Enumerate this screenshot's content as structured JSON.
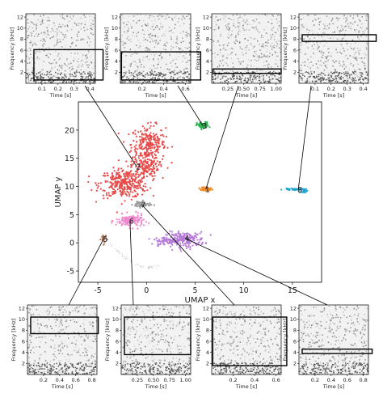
{
  "chart_data": {
    "type": "scatter",
    "xlabel": "UMAP x",
    "ylabel": "UMAP y",
    "xlim": [
      -7,
      18
    ],
    "ylim": [
      -7,
      25
    ],
    "xticks": [
      -5,
      0,
      5,
      10,
      15
    ],
    "yticks": [
      -5,
      0,
      5,
      10,
      15,
      20
    ],
    "grid": false,
    "clusters": [
      {
        "label": "1",
        "color": "#f28e2b",
        "center": [
          6.1,
          9.5
        ]
      },
      {
        "label": "2",
        "color": "#e84a4a",
        "center": [
          -1.0,
          13.5
        ]
      },
      {
        "label": "3",
        "color": "#27b24a",
        "center": [
          5.8,
          20.8
        ]
      },
      {
        "label": "4",
        "color": "#b57bd6",
        "center": [
          4.0,
          0.8
        ]
      },
      {
        "label": "5",
        "color": "#b07a60",
        "center": [
          -4.4,
          0.7
        ]
      },
      {
        "label": "6",
        "color": "#ee88cc",
        "center": [
          -1.7,
          3.9
        ]
      },
      {
        "label": "7",
        "color": "#9a9a9a",
        "center": [
          -0.5,
          6.8
        ]
      },
      {
        "label": "8",
        "color": "#1fa5d0",
        "center": [
          15.6,
          9.4
        ]
      }
    ],
    "spectrograms": [
      {
        "cluster": "2",
        "freq_ticks": [
          "2",
          "4",
          "6",
          "8",
          "10",
          "12"
        ],
        "time_ticks": [
          "0.1",
          "0.2",
          "0.3",
          "0.4"
        ],
        "ylabel": "Frequency [kHz]",
        "xlabel": "Time [s]",
        "box": [
          0.05,
          0.48,
          0.6,
          6.1
        ]
      },
      {
        "cluster": "3",
        "freq_ticks": [
          "2",
          "4",
          "6",
          "8",
          "10",
          "12"
        ],
        "time_ticks": [
          "0.2",
          "0.4",
          "0.6"
        ],
        "ylabel": "Frequency [kHz]",
        "xlabel": "Time [s]",
        "box": [
          0.01,
          0.74,
          0.6,
          5.7
        ]
      },
      {
        "cluster": "1",
        "freq_ticks": [
          "2",
          "4",
          "6",
          "8",
          "10",
          "12"
        ],
        "time_ticks": [
          "0.25",
          "0.50",
          "0.75",
          "1.00"
        ],
        "ylabel": "Frequency [kHz]",
        "xlabel": "Time [s]",
        "box": [
          0.02,
          1.08,
          1.8,
          2.6
        ]
      },
      {
        "cluster": "8",
        "freq_ticks": [
          "2",
          "4",
          "6",
          "8",
          "10",
          "12"
        ],
        "time_ticks": [
          "0.1",
          "0.2",
          "0.3",
          "0.4"
        ],
        "ylabel": "Frequency [kHz]",
        "xlabel": "Time [s]",
        "box": [
          0.02,
          0.48,
          7.6,
          8.8
        ]
      },
      {
        "cluster": "5",
        "freq_ticks": [
          "2",
          "4",
          "6",
          "8",
          "10",
          "12"
        ],
        "time_ticks": [
          "0.2",
          "0.4",
          "0.6",
          "0.8"
        ],
        "ylabel": "Frequency [kHz]",
        "xlabel": "Time [s]",
        "box": [
          0.04,
          0.88,
          7.4,
          10.4
        ]
      },
      {
        "cluster": "6",
        "freq_ticks": [
          "2",
          "4",
          "6",
          "8",
          "10",
          "12"
        ],
        "time_ticks": [
          "0.25",
          "0.50",
          "0.75",
          "1.00"
        ],
        "ylabel": "Frequency [kHz]",
        "xlabel": "Time [s]",
        "box": [
          0.05,
          1.08,
          3.6,
          10.4
        ]
      },
      {
        "cluster": "7",
        "freq_ticks": [
          "2",
          "4",
          "6",
          "8",
          "10",
          "12"
        ],
        "time_ticks": [
          "0.2",
          "0.4",
          "0.6"
        ],
        "ylabel": "Frequency [kHz]",
        "xlabel": "Time [s]",
        "box": [
          0.01,
          0.7,
          1.6,
          10.4
        ]
      },
      {
        "cluster": "4",
        "freq_ticks": [
          "2",
          "4",
          "6",
          "8",
          "10",
          "12"
        ],
        "time_ticks": [
          "0.2",
          "0.4",
          "0.6",
          "0.8"
        ],
        "ylabel": "Frequency [kHz]",
        "xlabel": "Time [s]",
        "box": [
          0.04,
          0.91,
          3.8,
          4.6
        ]
      }
    ]
  }
}
